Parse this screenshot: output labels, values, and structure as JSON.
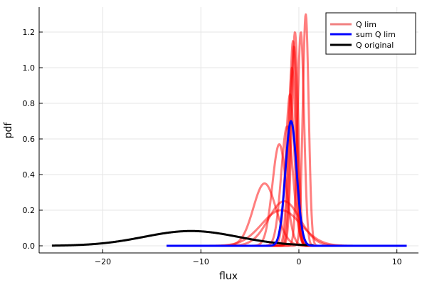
{
  "chart_data": {
    "type": "line",
    "xlabel": "flux",
    "ylabel": "pdf",
    "xlim": [
      -26.5,
      12.2
    ],
    "ylim": [
      -0.04,
      1.34
    ],
    "xticks": [
      -20,
      -10,
      0,
      10
    ],
    "xtick_labels": [
      "−20",
      "−10",
      "0",
      "10"
    ],
    "yticks": [
      0.0,
      0.2,
      0.4,
      0.6,
      0.8,
      1.0,
      1.2
    ],
    "ytick_labels": [
      "0.0",
      "0.2",
      "0.4",
      "0.6",
      "0.8",
      "1.0",
      "1.2"
    ],
    "grid": true,
    "legend_position": "top-right",
    "legend": [
      {
        "label": "Q lim",
        "color": "#f08080"
      },
      {
        "label": "sum Q lim",
        "color": "#0000ff"
      },
      {
        "label": "Q original",
        "color": "#000000"
      }
    ],
    "series": [
      {
        "name": "Q lim",
        "color": "#ff0000",
        "opacity": 0.5,
        "range": [
          -13.5,
          11
        ],
        "components": [
          {
            "mu": -3.5,
            "sigma": 1.15,
            "peak": 0.35
          },
          {
            "mu": -2.0,
            "sigma": 0.7,
            "peak": 0.57
          },
          {
            "mu": -1.8,
            "sigma": 2.0,
            "peak": 0.2
          },
          {
            "mu": -1.5,
            "sigma": 1.6,
            "peak": 0.25
          },
          {
            "mu": -1.2,
            "sigma": 0.6,
            "peak": 0.67
          },
          {
            "mu": -0.9,
            "sigma": 0.45,
            "peak": 0.85
          },
          {
            "mu": -0.7,
            "sigma": 0.38,
            "peak": 1.0
          },
          {
            "mu": -0.6,
            "sigma": 0.35,
            "peak": 1.15
          },
          {
            "mu": -0.5,
            "sigma": 0.33,
            "peak": 1.12
          },
          {
            "mu": -0.4,
            "sigma": 0.33,
            "peak": 1.2
          },
          {
            "mu": 0.2,
            "sigma": 0.33,
            "peak": 1.2
          },
          {
            "mu": 0.7,
            "sigma": 0.3,
            "peak": 1.3
          }
        ]
      },
      {
        "name": "sum Q lim",
        "color": "#0000ff",
        "range": [
          -13.5,
          11
        ],
        "mu": -0.8,
        "sigma": 0.57,
        "peak": 0.7
      },
      {
        "name": "Q original",
        "color": "#000000",
        "range": [
          -25.2,
          1.5
        ],
        "mu": -11.0,
        "sigma": 4.8,
        "peak": 0.083
      }
    ]
  }
}
